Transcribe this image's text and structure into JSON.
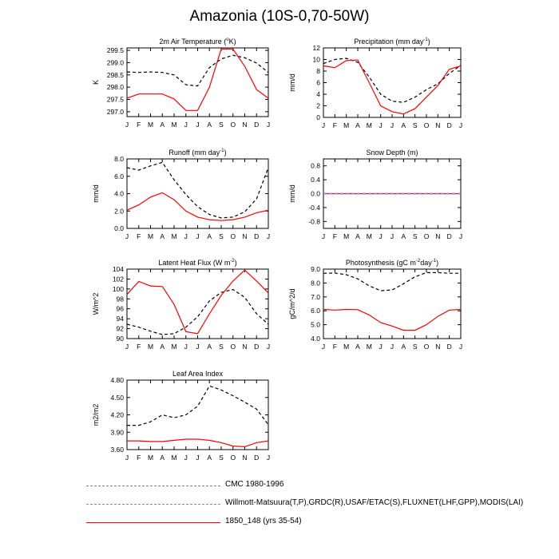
{
  "title": "Amazonia (10S-0,70-50W)",
  "colors": {
    "obs": "#000000",
    "model": "#ff0000",
    "obs_legend1": "#808080",
    "obs_legend2": "#8080ff"
  },
  "legend": [
    {
      "label": "CMC 1980-1996",
      "style": "dashed",
      "color": "#808080"
    },
    {
      "label": "Willmott-Matsuura(T,P),GRDC(R),USAF/ETAC(S),FLUXNET(LHF,GPP),MODIS(LAI)",
      "style": "dashed",
      "color": "#8080ff"
    },
    {
      "label": "1850_148 (yrs 35-54)",
      "style": "solid",
      "color": "#ff0000"
    }
  ],
  "chart_data": [
    {
      "type": "line",
      "title_main": "2m Air Temperature (",
      "title_sup": "o",
      "title_tail": "K)",
      "ylabel": "K",
      "categories": [
        "J",
        "F",
        "M",
        "A",
        "M",
        "J",
        "J",
        "A",
        "S",
        "O",
        "N",
        "D",
        "J"
      ],
      "ylim": [
        296.8,
        299.6
      ],
      "yticks": [
        "297.0",
        "297.5",
        "298.0",
        "298.5",
        "299.0",
        "299.5"
      ],
      "ytick_values": [
        297.0,
        297.5,
        298.0,
        298.5,
        299.0,
        299.5
      ],
      "series": [
        {
          "style": "dashed",
          "values": [
            298.62,
            298.6,
            298.62,
            298.6,
            298.5,
            298.1,
            298.05,
            298.8,
            299.15,
            299.3,
            299.2,
            298.98,
            298.6
          ]
        },
        {
          "style": "solid",
          "values": [
            297.55,
            297.72,
            297.72,
            297.72,
            297.52,
            297.05,
            297.05,
            298.0,
            299.55,
            299.55,
            298.85,
            297.9,
            297.55
          ]
        }
      ]
    },
    {
      "type": "line",
      "title_main": "Precipitation (mm day",
      "title_sup": "-1",
      "title_tail": ")",
      "ylabel": "mm/d",
      "categories": [
        "J",
        "F",
        "M",
        "A",
        "M",
        "J",
        "J",
        "A",
        "S",
        "O",
        "N",
        "D",
        "J"
      ],
      "ylim": [
        0,
        12
      ],
      "yticks": [
        "0",
        "2",
        "4",
        "6",
        "8",
        "10",
        "12"
      ],
      "ytick_values": [
        0,
        2,
        4,
        6,
        8,
        10,
        12
      ],
      "series": [
        {
          "style": "dashed",
          "values": [
            9.3,
            10.0,
            10.2,
            9.5,
            7.0,
            4.0,
            2.8,
            2.6,
            3.5,
            4.8,
            5.8,
            7.6,
            9.0
          ]
        },
        {
          "style": "solid",
          "values": [
            8.9,
            8.6,
            9.8,
            9.9,
            6.0,
            2.0,
            1.0,
            0.6,
            1.5,
            3.5,
            5.5,
            8.3,
            8.9
          ]
        }
      ]
    },
    {
      "type": "line",
      "title_main": "Runoff (mm day",
      "title_sup": "-1",
      "title_tail": ")",
      "ylabel": "mm/d",
      "categories": [
        "J",
        "F",
        "M",
        "A",
        "M",
        "J",
        "J",
        "A",
        "S",
        "O",
        "N",
        "D",
        "J"
      ],
      "ylim": [
        0,
        8
      ],
      "yticks": [
        "0.0",
        "2.0",
        "4.0",
        "6.0",
        "8.0"
      ],
      "ytick_values": [
        0,
        2,
        4,
        6,
        8
      ],
      "series": [
        {
          "style": "dashed",
          "values": [
            7.0,
            6.7,
            7.2,
            7.6,
            5.6,
            3.9,
            2.5,
            1.6,
            1.2,
            1.3,
            1.9,
            3.4,
            7.0
          ]
        },
        {
          "style": "solid",
          "values": [
            2.1,
            2.7,
            3.6,
            4.1,
            3.3,
            2.0,
            1.3,
            1.0,
            0.9,
            1.0,
            1.3,
            1.8,
            2.1
          ]
        }
      ]
    },
    {
      "type": "line",
      "title_main": "Snow Depth (m)",
      "title_sup": "",
      "title_tail": "",
      "ylabel": "mm/d",
      "categories": [
        "J",
        "F",
        "M",
        "A",
        "M",
        "J",
        "J",
        "A",
        "S",
        "O",
        "N",
        "D",
        "J"
      ],
      "ylim": [
        -1.0,
        1.0
      ],
      "yticks": [
        "-0.8",
        "-0.4",
        "0.0",
        "0.4",
        "0.8"
      ],
      "ytick_values": [
        -0.8,
        -0.4,
        0.0,
        0.4,
        0.8
      ],
      "series": [
        {
          "style": "dashed",
          "values": [
            0,
            0,
            0,
            0,
            0,
            0,
            0,
            0,
            0,
            0,
            0,
            0,
            0
          ]
        },
        {
          "style": "solid",
          "values": [
            0,
            0,
            0,
            0,
            0,
            0,
            0,
            0,
            0,
            0,
            0,
            0,
            0
          ]
        },
        {
          "style": "dashed-obs2",
          "values": [
            0,
            0,
            0,
            0,
            0,
            0,
            0,
            0,
            0,
            0,
            0,
            0,
            0
          ]
        }
      ]
    },
    {
      "type": "line",
      "title_main": "Latent Heat Flux (W m",
      "title_sup": "-2",
      "title_tail": ")",
      "ylabel": "W/m^2",
      "categories": [
        "J",
        "F",
        "M",
        "A",
        "M",
        "J",
        "J",
        "A",
        "S",
        "O",
        "N",
        "D",
        "J"
      ],
      "ylim": [
        90,
        104
      ],
      "yticks": [
        "90",
        "92",
        "94",
        "96",
        "98",
        "100",
        "102",
        "104"
      ],
      "ytick_values": [
        90,
        92,
        94,
        96,
        98,
        100,
        102,
        104
      ],
      "series": [
        {
          "style": "dashed",
          "values": [
            92.9,
            92.3,
            91.5,
            90.8,
            91.0,
            92.3,
            94.4,
            97.6,
            99.3,
            99.9,
            98.3,
            95.0,
            92.9
          ]
        },
        {
          "style": "solid",
          "values": [
            98.9,
            101.5,
            100.6,
            100.5,
            96.9,
            91.4,
            91.0,
            95.0,
            98.7,
            101.6,
            103.8,
            101.6,
            99.2
          ]
        }
      ]
    },
    {
      "type": "line",
      "title_main": "Photosynthesis (gC m",
      "title_sup": "-2",
      "title_tail": "day",
      "title_sup2": "-1",
      "title_tail2": ")",
      "ylabel": "gC/m^2/d",
      "categories": [
        "J",
        "F",
        "M",
        "A",
        "M",
        "J",
        "J",
        "A",
        "S",
        "O",
        "N",
        "D",
        "J"
      ],
      "ylim": [
        4.0,
        9.0
      ],
      "yticks": [
        "4.0",
        "5.0",
        "6.0",
        "7.0",
        "8.0",
        "9.0"
      ],
      "ytick_values": [
        4.0,
        5.0,
        6.0,
        7.0,
        8.0,
        9.0
      ],
      "series": [
        {
          "style": "dashed",
          "values": [
            8.7,
            8.72,
            8.6,
            8.3,
            7.8,
            7.45,
            7.5,
            7.95,
            8.45,
            8.75,
            8.75,
            8.7,
            8.7
          ]
        },
        {
          "style": "solid",
          "values": [
            6.1,
            6.05,
            6.1,
            6.08,
            5.7,
            5.15,
            4.9,
            4.6,
            4.6,
            5.0,
            5.6,
            6.05,
            6.1
          ]
        }
      ]
    },
    {
      "type": "line",
      "title_main": "Leaf Area Index",
      "title_sup": "",
      "title_tail": "",
      "ylabel": "m2/m2",
      "categories": [
        "J",
        "F",
        "M",
        "A",
        "M",
        "J",
        "J",
        "A",
        "S",
        "O",
        "N",
        "D",
        "J"
      ],
      "ylim": [
        3.6,
        4.8
      ],
      "yticks": [
        "3.60",
        "3.90",
        "4.20",
        "4.50",
        "4.80"
      ],
      "ytick_values": [
        3.6,
        3.9,
        4.2,
        4.5,
        4.8
      ],
      "series": [
        {
          "style": "dashed",
          "values": [
            4.02,
            4.02,
            4.08,
            4.2,
            4.15,
            4.2,
            4.35,
            4.7,
            4.63,
            4.53,
            4.42,
            4.3,
            4.03
          ]
        },
        {
          "style": "solid",
          "values": [
            3.75,
            3.75,
            3.74,
            3.74,
            3.76,
            3.78,
            3.78,
            3.76,
            3.72,
            3.66,
            3.65,
            3.72,
            3.75
          ]
        }
      ]
    }
  ]
}
